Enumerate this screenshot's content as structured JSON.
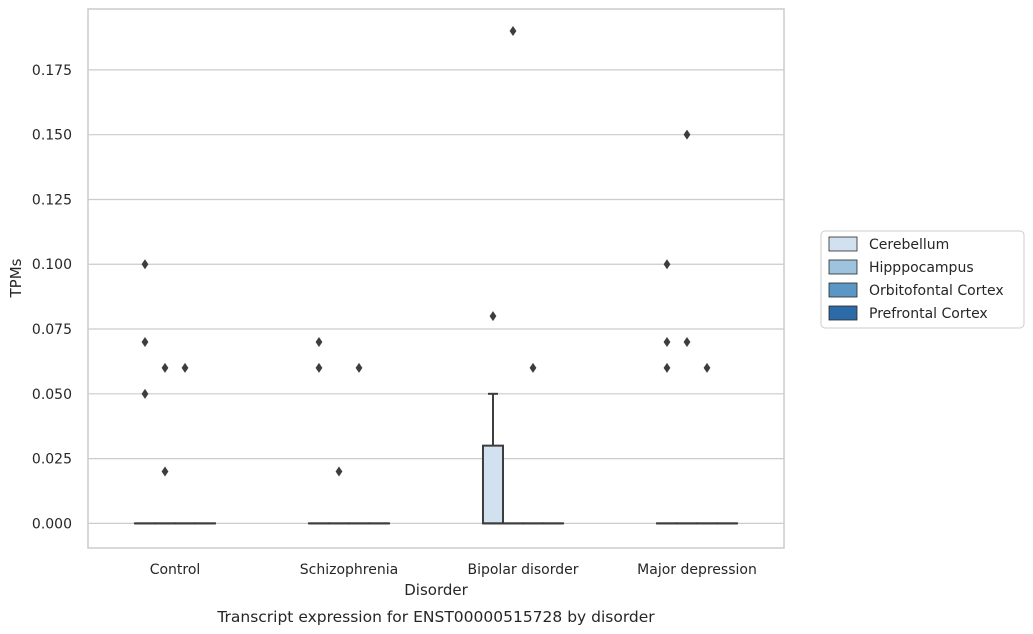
{
  "chart_data": {
    "type": "box",
    "title": "",
    "caption": "Transcript expression for ENST00000515728 by disorder",
    "xlabel": "Disorder",
    "ylabel": "TPMs",
    "ylim": [
      -0.0095,
      0.1985
    ],
    "yticks": [
      0.0,
      0.025,
      0.05,
      0.075,
      0.1,
      0.125,
      0.15,
      0.175
    ],
    "ytick_labels": [
      "0.000",
      "0.025",
      "0.050",
      "0.075",
      "0.100",
      "0.125",
      "0.150",
      "0.175"
    ],
    "grid": "horizontal",
    "legend_position": "right",
    "categories": [
      "Control",
      "Schizophrenia",
      "Bipolar disorder",
      "Major depression"
    ],
    "series": [
      {
        "name": "Cerebellum",
        "color": "#d1e1f0",
        "boxes": [
          {
            "q1": 0,
            "median": 0,
            "q3": 0,
            "whisker_low": 0,
            "whisker_high": 0,
            "outliers": [
              0.1,
              0.07,
              0.05
            ]
          },
          {
            "q1": 0,
            "median": 0,
            "q3": 0,
            "whisker_low": 0,
            "whisker_high": 0,
            "outliers": [
              0.07,
              0.06
            ]
          },
          {
            "q1": 0,
            "median": 0,
            "q3": 0.03,
            "whisker_low": 0,
            "whisker_high": 0.05,
            "outliers": [
              0.08
            ]
          },
          {
            "q1": 0,
            "median": 0,
            "q3": 0,
            "whisker_low": 0,
            "whisker_high": 0,
            "outliers": [
              0.1,
              0.07,
              0.06
            ]
          }
        ]
      },
      {
        "name": "Hipppocampus",
        "color": "#9dc3de",
        "boxes": [
          {
            "q1": 0,
            "median": 0,
            "q3": 0,
            "whisker_low": 0,
            "whisker_high": 0,
            "outliers": [
              0.06,
              0.02
            ]
          },
          {
            "q1": 0,
            "median": 0,
            "q3": 0,
            "whisker_low": 0,
            "whisker_high": 0,
            "outliers": [
              0.02
            ]
          },
          {
            "q1": 0,
            "median": 0,
            "q3": 0,
            "whisker_low": 0,
            "whisker_high": 0,
            "outliers": [
              0.19
            ]
          },
          {
            "q1": 0,
            "median": 0,
            "q3": 0,
            "whisker_low": 0,
            "whisker_high": 0,
            "outliers": [
              0.15,
              0.07
            ]
          }
        ]
      },
      {
        "name": "Orbitofontal Cortex",
        "color": "#5b97c4",
        "boxes": [
          {
            "q1": 0,
            "median": 0,
            "q3": 0,
            "whisker_low": 0,
            "whisker_high": 0,
            "outliers": [
              0.06
            ]
          },
          {
            "q1": 0,
            "median": 0,
            "q3": 0,
            "whisker_low": 0,
            "whisker_high": 0,
            "outliers": [
              0.06
            ]
          },
          {
            "q1": 0,
            "median": 0,
            "q3": 0,
            "whisker_low": 0,
            "whisker_high": 0,
            "outliers": [
              0.06
            ]
          },
          {
            "q1": 0,
            "median": 0,
            "q3": 0,
            "whisker_low": 0,
            "whisker_high": 0,
            "outliers": [
              0.06
            ]
          }
        ]
      },
      {
        "name": "Prefrontal Cortex",
        "color": "#2f6aa8",
        "boxes": [
          {
            "q1": 0,
            "median": 0,
            "q3": 0,
            "whisker_low": 0,
            "whisker_high": 0,
            "outliers": []
          },
          {
            "q1": 0,
            "median": 0,
            "q3": 0,
            "whisker_low": 0,
            "whisker_high": 0,
            "outliers": []
          },
          {
            "q1": 0,
            "median": 0,
            "q3": 0,
            "whisker_low": 0,
            "whisker_high": 0,
            "outliers": []
          },
          {
            "q1": 0,
            "median": 0,
            "q3": 0,
            "whisker_low": 0,
            "whisker_high": 0,
            "outliers": []
          }
        ]
      }
    ]
  }
}
